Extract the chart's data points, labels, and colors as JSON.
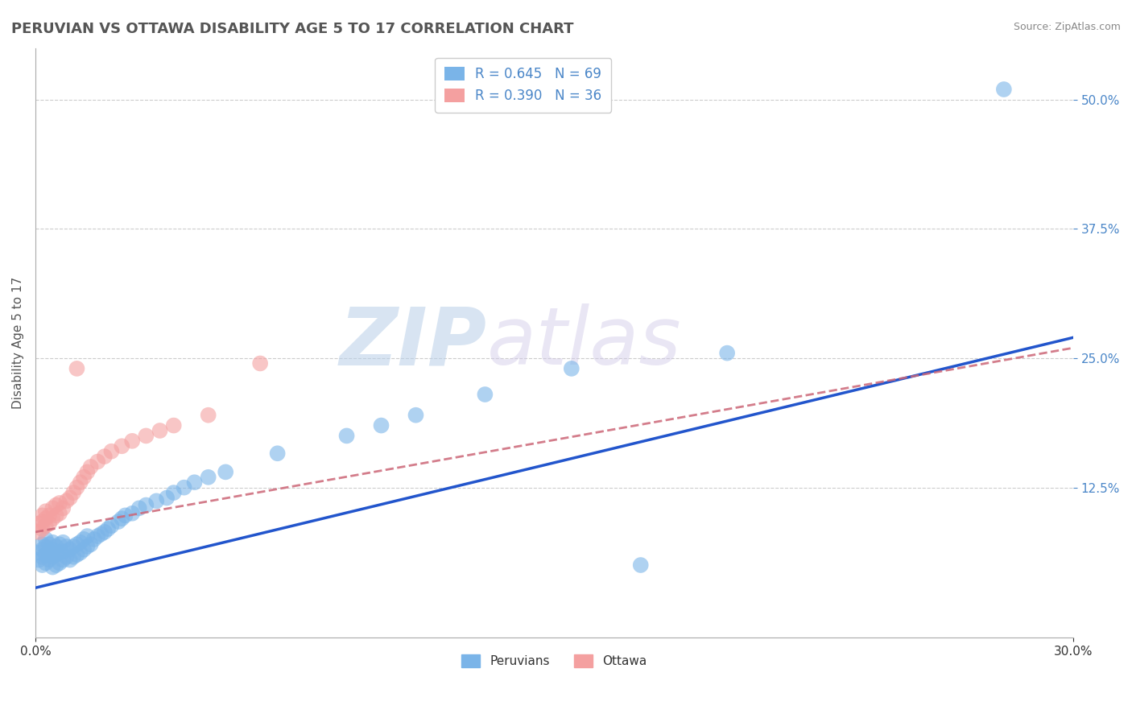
{
  "title": "PERUVIAN VS OTTAWA DISABILITY AGE 5 TO 17 CORRELATION CHART",
  "source": "Source: ZipAtlas.com",
  "ylabel": "Disability Age 5 to 17",
  "xlim": [
    0.0,
    0.3
  ],
  "ylim": [
    -0.02,
    0.55
  ],
  "ytick_positions": [
    0.125,
    0.25,
    0.375,
    0.5
  ],
  "blue_color": "#7ab4e8",
  "pink_color": "#f4a0a0",
  "blue_line_color": "#2255cc",
  "pink_line_color": "#cc6677",
  "legend_blue_label": "R = 0.645   N = 69",
  "legend_pink_label": "R = 0.390   N = 36",
  "legend_peruvians": "Peruvians",
  "legend_ottawa": "Ottawa",
  "watermark_zip": "ZIP",
  "watermark_atlas": "atlas",
  "background_color": "#ffffff",
  "grid_color": "#cccccc",
  "blue_line_x0": 0.0,
  "blue_line_y0": 0.028,
  "blue_line_x1": 0.3,
  "blue_line_y1": 0.27,
  "pink_line_x0": 0.0,
  "pink_line_y0": 0.082,
  "pink_line_x1": 0.3,
  "pink_line_y1": 0.26,
  "blue_scatter_x": [
    0.001,
    0.001,
    0.002,
    0.002,
    0.002,
    0.002,
    0.003,
    0.003,
    0.003,
    0.003,
    0.004,
    0.004,
    0.004,
    0.005,
    0.005,
    0.005,
    0.005,
    0.006,
    0.006,
    0.006,
    0.007,
    0.007,
    0.007,
    0.008,
    0.008,
    0.008,
    0.009,
    0.009,
    0.01,
    0.01,
    0.011,
    0.011,
    0.012,
    0.012,
    0.013,
    0.013,
    0.014,
    0.014,
    0.015,
    0.015,
    0.016,
    0.017,
    0.018,
    0.019,
    0.02,
    0.021,
    0.022,
    0.024,
    0.025,
    0.026,
    0.028,
    0.03,
    0.032,
    0.035,
    0.038,
    0.04,
    0.043,
    0.046,
    0.05,
    0.055,
    0.07,
    0.09,
    0.1,
    0.11,
    0.13,
    0.155,
    0.175,
    0.2,
    0.28
  ],
  "blue_scatter_y": [
    0.055,
    0.062,
    0.05,
    0.058,
    0.065,
    0.07,
    0.052,
    0.06,
    0.068,
    0.075,
    0.055,
    0.063,
    0.07,
    0.048,
    0.058,
    0.065,
    0.072,
    0.05,
    0.06,
    0.068,
    0.052,
    0.062,
    0.07,
    0.055,
    0.063,
    0.072,
    0.058,
    0.068,
    0.055,
    0.065,
    0.058,
    0.068,
    0.06,
    0.07,
    0.062,
    0.072,
    0.065,
    0.075,
    0.068,
    0.078,
    0.07,
    0.075,
    0.078,
    0.08,
    0.082,
    0.085,
    0.088,
    0.092,
    0.095,
    0.098,
    0.1,
    0.105,
    0.108,
    0.112,
    0.115,
    0.12,
    0.125,
    0.13,
    0.135,
    0.14,
    0.158,
    0.175,
    0.185,
    0.195,
    0.215,
    0.24,
    0.05,
    0.255,
    0.51
  ],
  "pink_scatter_x": [
    0.001,
    0.001,
    0.002,
    0.002,
    0.002,
    0.003,
    0.003,
    0.003,
    0.004,
    0.004,
    0.005,
    0.005,
    0.006,
    0.006,
    0.007,
    0.007,
    0.008,
    0.009,
    0.01,
    0.011,
    0.012,
    0.013,
    0.014,
    0.015,
    0.016,
    0.018,
    0.02,
    0.022,
    0.025,
    0.028,
    0.032,
    0.036,
    0.04,
    0.05,
    0.065,
    0.012
  ],
  "pink_scatter_y": [
    0.082,
    0.09,
    0.085,
    0.092,
    0.098,
    0.088,
    0.095,
    0.102,
    0.09,
    0.098,
    0.095,
    0.105,
    0.098,
    0.108,
    0.1,
    0.11,
    0.105,
    0.112,
    0.115,
    0.12,
    0.125,
    0.13,
    0.135,
    0.14,
    0.145,
    0.15,
    0.155,
    0.16,
    0.165,
    0.17,
    0.175,
    0.18,
    0.185,
    0.195,
    0.245,
    0.24
  ]
}
